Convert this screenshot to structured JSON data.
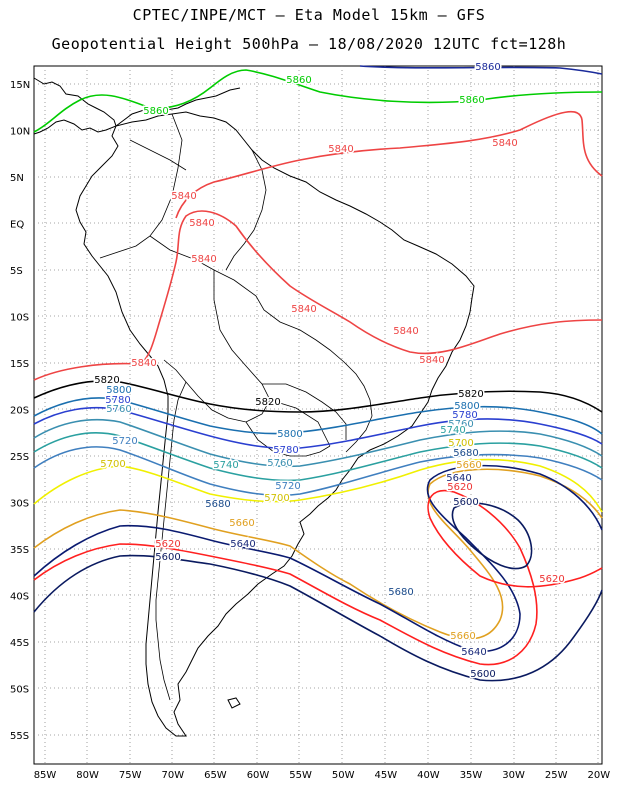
{
  "header": {
    "line1": "CPTEC/INPE/MCT –  Eta Model 15km – GFS",
    "line2": "Geopotential Height 500hPa – 18/08/2020 12UTC fct=128h"
  },
  "axes": {
    "lat_labels": [
      "15N",
      "10N",
      "5N",
      "EQ",
      "5S",
      "10S",
      "15S",
      "20S",
      "25S",
      "30S",
      "35S",
      "40S",
      "45S",
      "50S",
      "55S"
    ],
    "lon_labels": [
      "85W",
      "80W",
      "75W",
      "70W",
      "65W",
      "60W",
      "55W",
      "50W",
      "45W",
      "40W",
      "35W",
      "30W",
      "25W",
      "20W"
    ]
  },
  "contours": [
    {
      "value": "5860",
      "color": "#00cc00"
    },
    {
      "value": "5840",
      "color": "#ee4444"
    },
    {
      "value": "5820",
      "color": "#000000"
    },
    {
      "value": "5800",
      "color": "#1a6faf"
    },
    {
      "value": "5780",
      "color": "#2a3fd0"
    },
    {
      "value": "5760",
      "color": "#3a8fb0"
    },
    {
      "value": "5740",
      "color": "#2aa0a0"
    },
    {
      "value": "5720",
      "color": "#3f7fbf"
    },
    {
      "value": "5700",
      "color": "#f0f000"
    },
    {
      "value": "5680",
      "color": "#e0a020"
    },
    {
      "value": "5660",
      "color": "#e08050"
    },
    {
      "value": "5640",
      "color": "#ff2020"
    },
    {
      "value": "5620",
      "color": "#0a1a70"
    },
    {
      "value": "5600",
      "color": "#0a1a60"
    }
  ],
  "labels": [
    {
      "text": "5860",
      "color": "#00cc00"
    },
    {
      "text": "5860",
      "color": "#00cc00"
    },
    {
      "text": "5860",
      "color": "#00cc00"
    },
    {
      "text": "5860",
      "color": "#1a2a9a"
    },
    {
      "text": "5840",
      "color": "#ee4444"
    },
    {
      "text": "5840",
      "color": "#ee4444"
    },
    {
      "text": "5840",
      "color": "#ee4444"
    },
    {
      "text": "5840",
      "color": "#ee4444"
    },
    {
      "text": "5840",
      "color": "#ee4444"
    },
    {
      "text": "5840",
      "color": "#ee4444"
    },
    {
      "text": "5840",
      "color": "#ee4444"
    },
    {
      "text": "5840",
      "color": "#ee4444"
    },
    {
      "text": "5840",
      "color": "#ee4444"
    },
    {
      "text": "5820",
      "color": "#000000"
    },
    {
      "text": "5820",
      "color": "#000000"
    },
    {
      "text": "5820",
      "color": "#000000"
    },
    {
      "text": "5800",
      "color": "#1a6faf"
    },
    {
      "text": "5800",
      "color": "#1a6faf"
    },
    {
      "text": "5800",
      "color": "#1a6faf"
    },
    {
      "text": "5780",
      "color": "#2a3fd0"
    },
    {
      "text": "5780",
      "color": "#2a3fd0"
    },
    {
      "text": "5780",
      "color": "#2a3fd0"
    },
    {
      "text": "5760",
      "color": "#3a8fb0"
    },
    {
      "text": "5760",
      "color": "#3a8fb0"
    },
    {
      "text": "5760",
      "color": "#3a8fb0"
    },
    {
      "text": "5740",
      "color": "#2aa0a0"
    },
    {
      "text": "5740",
      "color": "#2aa0a0"
    },
    {
      "text": "5720",
      "color": "#3f7fbf"
    },
    {
      "text": "5720",
      "color": "#3f7fbf"
    },
    {
      "text": "5700",
      "color": "#d0c000"
    },
    {
      "text": "5700",
      "color": "#d0c000"
    },
    {
      "text": "5700",
      "color": "#d0c000"
    },
    {
      "text": "5680",
      "color": "#1a4a8a"
    },
    {
      "text": "5680",
      "color": "#1a4a8a"
    },
    {
      "text": "5680",
      "color": "#1a4a8a"
    },
    {
      "text": "5660",
      "color": "#e0a020"
    },
    {
      "text": "5660",
      "color": "#e0a020"
    },
    {
      "text": "5660",
      "color": "#e0a020"
    },
    {
      "text": "5640",
      "color": "#1a2a7a"
    },
    {
      "text": "5640",
      "color": "#1a2a7a"
    },
    {
      "text": "5640",
      "color": "#1a2a7a"
    },
    {
      "text": "5620",
      "color": "#ee3333"
    },
    {
      "text": "5620",
      "color": "#ee3333"
    },
    {
      "text": "5620",
      "color": "#ee3333"
    },
    {
      "text": "5600",
      "color": "#0a1a60"
    },
    {
      "text": "5600",
      "color": "#0a1a60"
    },
    {
      "text": "5600",
      "color": "#0a1a60"
    }
  ]
}
